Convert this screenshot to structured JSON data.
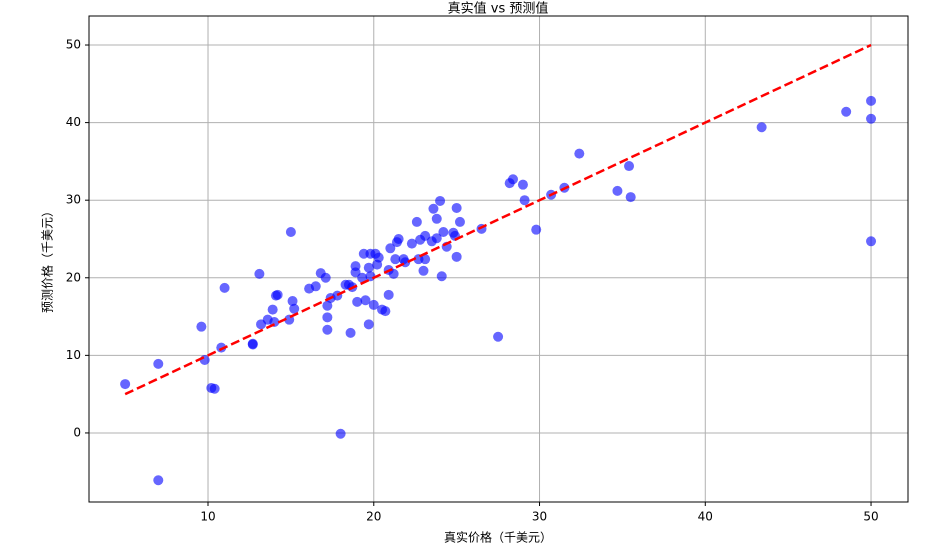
{
  "chart_data": {
    "type": "scatter",
    "title": "真实值 vs 预测值",
    "x_label": "真实价格（千美元）",
    "y_label": "预测价格（千美元）",
    "x": [
      5.0,
      7.0,
      7.0,
      9.6,
      9.8,
      10.2,
      10.4,
      10.8,
      11.0,
      12.7,
      12.7,
      13.1,
      13.2,
      13.6,
      13.9,
      14.1,
      14.2,
      14.0,
      14.9,
      15.0,
      15.1,
      15.2,
      16.1,
      16.5,
      16.8,
      17.1,
      17.2,
      17.2,
      17.2,
      17.4,
      17.8,
      18.0,
      18.3,
      18.5,
      18.6,
      18.7,
      18.9,
      18.9,
      19.0,
      19.3,
      19.4,
      19.5,
      19.7,
      19.7,
      19.8,
      19.8,
      20.0,
      20.1,
      20.2,
      20.3,
      20.5,
      20.7,
      20.9,
      20.9,
      21.0,
      21.2,
      21.3,
      21.4,
      21.5,
      21.8,
      21.9,
      22.3,
      22.6,
      22.7,
      22.8,
      23.0,
      23.1,
      23.1,
      23.5,
      23.6,
      23.8,
      23.8,
      24.0,
      24.1,
      24.2,
      24.4,
      24.8,
      24.9,
      25.0,
      25.0,
      25.2,
      26.5,
      27.5,
      28.2,
      28.4,
      29.0,
      29.1,
      29.8,
      30.7,
      31.5,
      32.4,
      34.7,
      35.4,
      35.5,
      43.4,
      48.5,
      50.0,
      50.0,
      50.0
    ],
    "y": [
      6.3,
      8.9,
      -6.1,
      13.7,
      9.4,
      5.8,
      5.7,
      11.0,
      18.7,
      11.5,
      11.4,
      20.5,
      14.0,
      14.6,
      15.9,
      17.7,
      17.8,
      14.3,
      14.6,
      25.9,
      17.0,
      16.0,
      18.6,
      18.9,
      20.6,
      20.0,
      16.4,
      14.9,
      13.3,
      17.4,
      17.7,
      -0.1,
      19.1,
      19.1,
      12.9,
      18.8,
      20.7,
      21.5,
      16.9,
      20.0,
      23.1,
      17.1,
      21.3,
      14.0,
      23.1,
      20.2,
      16.5,
      23.1,
      21.7,
      22.6,
      15.9,
      15.7,
      17.8,
      21.0,
      23.8,
      20.5,
      22.4,
      24.6,
      25.0,
      22.4,
      22.0,
      24.4,
      27.2,
      22.4,
      24.9,
      20.9,
      22.4,
      25.4,
      24.7,
      28.9,
      27.6,
      25.1,
      29.9,
      20.2,
      25.9,
      24.0,
      25.8,
      25.4,
      29.0,
      22.7,
      27.2,
      26.3,
      12.4,
      32.2,
      32.7,
      32.0,
      30.0,
      26.2,
      30.7,
      31.6,
      36.0,
      31.2,
      34.4,
      30.4,
      39.4,
      41.4,
      42.8,
      40.5,
      24.7
    ],
    "color": "#0000ff",
    "alpha": 0.6,
    "reference_line": {
      "x": [
        5,
        50
      ],
      "y": [
        5,
        50
      ],
      "color": "#ff0000",
      "dashed": true
    },
    "xlim": [
      2.82,
      52.23
    ],
    "ylim": [
      -8.9,
      53.74
    ],
    "xticks": [
      10,
      20,
      30,
      40,
      50
    ],
    "yticks": [
      0,
      10,
      20,
      30,
      40,
      50
    ],
    "grid": true
  }
}
